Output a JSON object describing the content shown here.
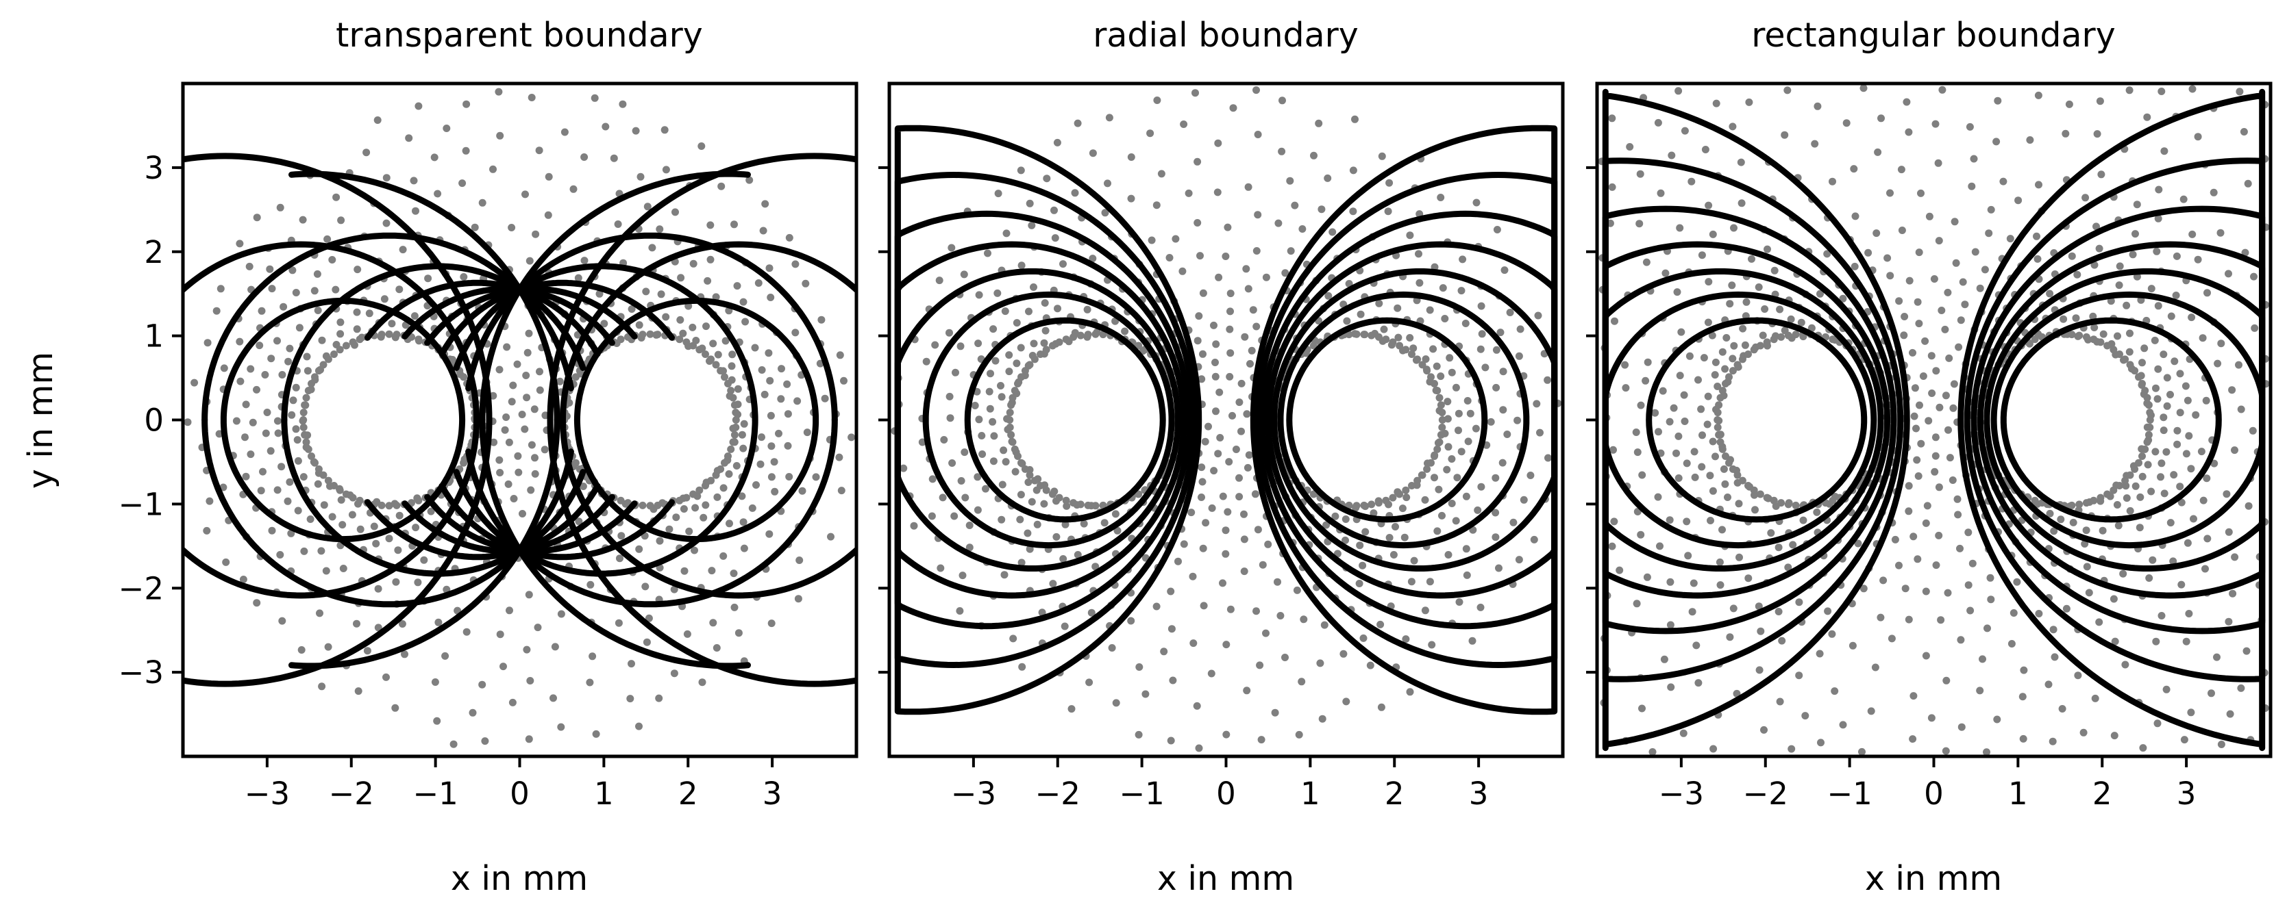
{
  "figure": {
    "y_axis_label": "y in mm",
    "x_axis_label": "x in mm"
  },
  "colors": {
    "field_line": "#000000",
    "mesh_point": "#7f7f7f",
    "axes": "#000000",
    "background": "#ffffff"
  },
  "chart_data": [
    {
      "type": "line",
      "title": "transparent boundary",
      "xlabel": "x in mm",
      "ylabel": "y in mm",
      "xlim": [
        -4.0,
        4.0
      ],
      "ylim": [
        -4.0,
        4.0
      ],
      "xticks": [
        -3,
        -2,
        -1,
        0,
        1,
        2,
        3
      ],
      "yticks": [
        -3,
        -2,
        -1,
        0,
        1,
        2,
        3
      ],
      "xtick_labels": [
        "−3",
        "−2",
        "−1",
        "0",
        "1",
        "2",
        "3"
      ],
      "ytick_labels": [
        "−3",
        "−2",
        "−1",
        "0",
        "1",
        "2",
        "3"
      ],
      "boundary": "circle",
      "domain_radius": 4.0,
      "conductor_centers_x": [
        -1.55,
        1.55
      ],
      "conductor_radius": 1.0,
      "field_lines_closed_c": [
        2.1,
        2.6,
        3.5
      ],
      "field_lines_open_angles_deg": [
        32,
        45,
        58,
        72,
        84
      ],
      "grid": false,
      "legend": "none",
      "series": [
        {
          "kind": "field lines",
          "color": "#000000"
        },
        {
          "kind": "mesh points",
          "color": "#7f7f7f"
        }
      ]
    },
    {
      "type": "line",
      "title": "radial boundary",
      "xlabel": "x in mm",
      "xlim": [
        -4.0,
        4.0
      ],
      "ylim": [
        -4.0,
        4.0
      ],
      "xticks": [
        -3,
        -2,
        -1,
        0,
        1,
        2,
        3
      ],
      "yticks": [
        -3,
        -2,
        -1,
        0,
        1,
        2,
        3
      ],
      "xtick_labels": [
        "−3",
        "−2",
        "−1",
        "0",
        "1",
        "2",
        "3"
      ],
      "boundary": "circle",
      "domain_radius": 4.0,
      "conductor_centers_x": [
        -1.55,
        1.55
      ],
      "conductor_radius": 1.0,
      "field_lines_closed_c": [
        1.95,
        2.15,
        2.35,
        2.6,
        2.9,
        3.3,
        3.8
      ],
      "grid": false,
      "legend": "none",
      "series": [
        {
          "kind": "field lines",
          "color": "#000000"
        },
        {
          "kind": "mesh points",
          "color": "#7f7f7f"
        }
      ]
    },
    {
      "type": "line",
      "title": "rectangular boundary",
      "xlabel": "x in mm",
      "xlim": [
        -4.0,
        4.0
      ],
      "ylim": [
        -4.0,
        4.0
      ],
      "xticks": [
        -3,
        -2,
        -1,
        0,
        1,
        2,
        3
      ],
      "yticks": [
        -3,
        -2,
        -1,
        0,
        1,
        2,
        3
      ],
      "xtick_labels": [
        "−3",
        "−2",
        "−1",
        "0",
        "1",
        "2",
        "3"
      ],
      "boundary": "square",
      "domain_half_width": 4.0,
      "conductor_centers_x": [
        -1.55,
        1.55
      ],
      "conductor_radius": 1.0,
      "field_lines_closed_c": [
        1.95,
        2.15,
        2.35,
        2.6,
        2.95,
        3.45,
        4.2
      ],
      "grid": false,
      "legend": "none",
      "series": [
        {
          "kind": "field lines",
          "color": "#000000"
        },
        {
          "kind": "mesh points",
          "color": "#7f7f7f"
        }
      ]
    }
  ]
}
